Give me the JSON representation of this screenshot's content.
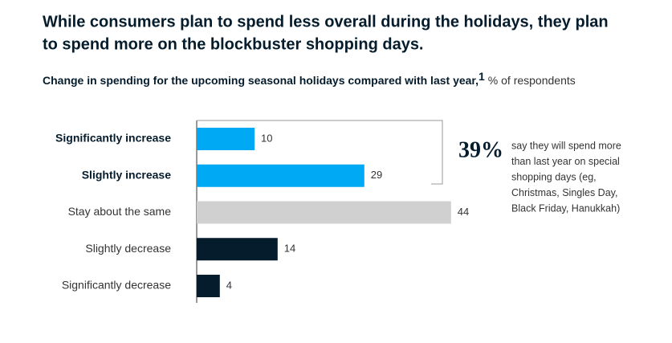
{
  "chart_data": {
    "type": "bar",
    "orientation": "horizontal",
    "title": [
      "While consumers plan to spend less overall during the holidays, they plan",
      "to spend more on the blockbuster shopping days."
    ],
    "subtitle": "Change in spending for the upcoming seasonal holidays compared with last year,",
    "subtitle_note": "1",
    "subtitle_unit": "% of respondents",
    "categories": [
      "Significantly increase",
      "Slightly increase",
      "Stay about the same",
      "Slightly decrease",
      "Significantly decrease"
    ],
    "values": [
      10,
      29,
      44,
      14,
      4
    ],
    "colors": [
      "#00a9f4",
      "#00a9f4",
      "#d0d0d0",
      "#051c2c",
      "#051c2c"
    ],
    "bold": [
      true,
      true,
      false,
      false,
      false
    ],
    "callout": {
      "label": "39%",
      "text": [
        "say they will spend more",
        "than last year on special",
        "shopping days (eg,",
        "Christmas, Singles Day,",
        "Black Friday, Hanukkah)"
      ]
    }
  }
}
